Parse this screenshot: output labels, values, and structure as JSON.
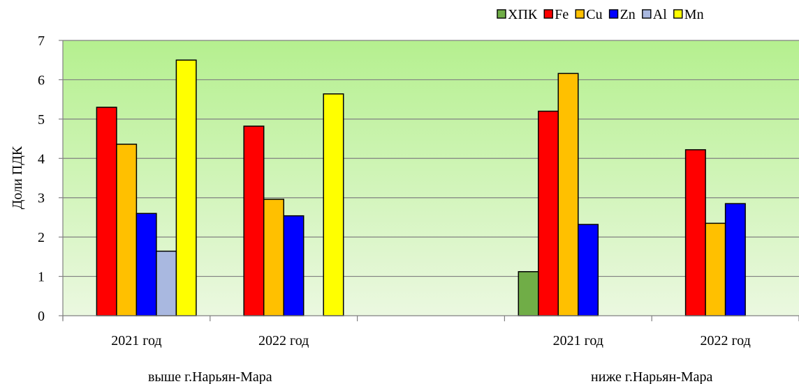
{
  "chart_data": {
    "type": "bar",
    "ylabel": "Доли ПДК",
    "ylim": [
      0,
      7
    ],
    "yticks": [
      0,
      1,
      2,
      3,
      4,
      5,
      6,
      7
    ],
    "grid": true,
    "legend_position": "top-right",
    "groups": [
      {
        "label": "выше г.Нарьян-Мара",
        "categories": [
          "2021 год",
          "2022 год"
        ]
      },
      {
        "label": "",
        "categories": [
          ""
        ]
      },
      {
        "label": "ниже г.Нарьян-Мара",
        "categories": [
          "2021 год",
          "2022 год"
        ]
      }
    ],
    "categories": [
      "2021 год",
      "2022 год",
      "",
      "2021 год",
      "2022 год"
    ],
    "series": [
      {
        "name": "ХПК",
        "color": "#70ad47",
        "values": [
          null,
          null,
          null,
          1.12,
          null
        ]
      },
      {
        "name": "Fe",
        "color": "#ff0000",
        "values": [
          5.3,
          4.82,
          null,
          5.2,
          4.22
        ]
      },
      {
        "name": "Cu",
        "color": "#ffc000",
        "values": [
          4.36,
          2.96,
          null,
          6.16,
          2.35
        ]
      },
      {
        "name": "Zn",
        "color": "#0000ff",
        "values": [
          2.6,
          2.54,
          null,
          2.32,
          2.85
        ]
      },
      {
        "name": "Al",
        "color": "#a9b8e0",
        "values": [
          1.64,
          null,
          null,
          null,
          null
        ]
      },
      {
        "name": "Mn",
        "color": "#ffff00",
        "values": [
          6.5,
          5.64,
          null,
          null,
          null
        ]
      }
    ],
    "background_gradient": [
      "#ebf8e0",
      "#b5f08f"
    ]
  }
}
